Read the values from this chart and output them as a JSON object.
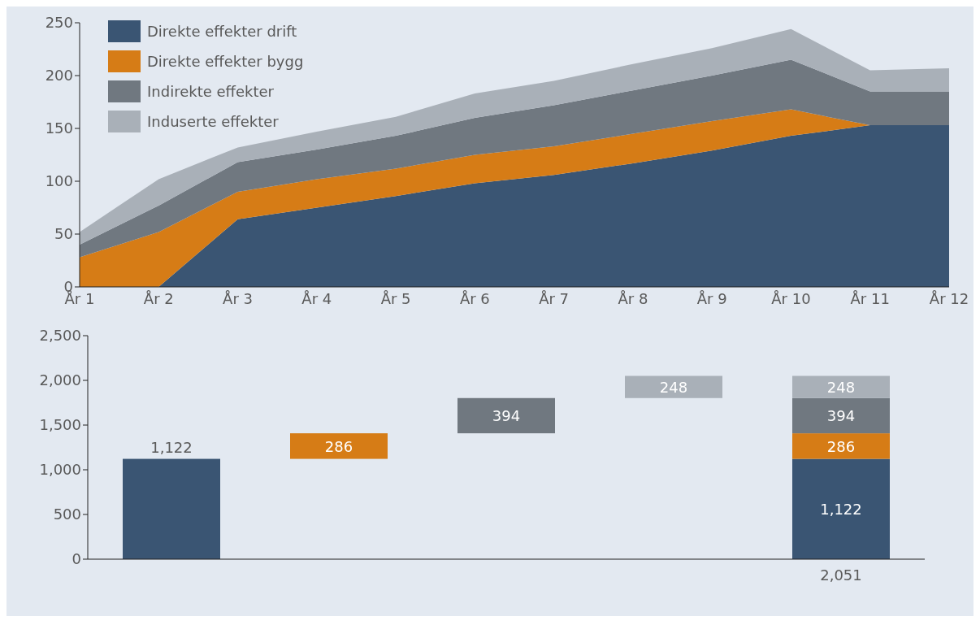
{
  "chart_data": [
    {
      "type": "area",
      "stacked": true,
      "categories": [
        "År 1",
        "År 2",
        "År 3",
        "År 4",
        "År 5",
        "År 6",
        "År 7",
        "År 8",
        "År 9",
        "År 10",
        "År 11",
        "År 12"
      ],
      "series": [
        {
          "name": "Direkte effekter drift",
          "color": "#3a5573",
          "values": [
            0,
            0,
            64,
            75,
            86,
            98,
            106,
            117,
            129,
            143,
            153,
            153
          ]
        },
        {
          "name": "Direkte effekter bygg",
          "color": "#d67c16",
          "values": [
            28,
            52,
            26,
            27,
            26,
            27,
            27,
            28,
            28,
            25,
            0,
            0
          ]
        },
        {
          "name": "Indirekte effekter",
          "color": "#707880",
          "values": [
            12,
            25,
            28,
            28,
            31,
            35,
            39,
            41,
            43,
            47,
            32,
            32
          ]
        },
        {
          "name": "Induserte effekter",
          "color": "#a9b0b8",
          "values": [
            12,
            25,
            14,
            17,
            18,
            23,
            23,
            25,
            26,
            29,
            20,
            22
          ]
        }
      ],
      "ylim": [
        0,
        250
      ],
      "yticks": [
        0,
        50,
        100,
        150,
        200,
        250
      ],
      "grid": false,
      "legend": "top left"
    },
    {
      "type": "bar",
      "categories": [
        null,
        null,
        null,
        null,
        null
      ],
      "series": [
        {
          "color": "#3a5573",
          "values": [
            1122,
            null,
            null,
            null,
            1122
          ],
          "base": [
            0,
            null,
            null,
            null,
            0
          ],
          "value_labels": [
            "1,122",
            null,
            null,
            null,
            "1,122"
          ]
        },
        {
          "color": "#d67c16",
          "values": [
            null,
            286,
            null,
            null,
            286
          ],
          "base": [
            null,
            1122,
            null,
            null,
            1122
          ],
          "value_labels": [
            null,
            "286",
            null,
            null,
            "286"
          ]
        },
        {
          "color": "#707880",
          "values": [
            null,
            null,
            394,
            null,
            394
          ],
          "base": [
            null,
            null,
            1408,
            null,
            1408
          ],
          "value_labels": [
            null,
            null,
            "394",
            null,
            "394"
          ]
        },
        {
          "color": "#a9b0b8",
          "values": [
            null,
            null,
            null,
            248,
            248
          ],
          "base": [
            null,
            null,
            null,
            1802,
            1802
          ],
          "value_labels": [
            null,
            null,
            null,
            "248",
            "248"
          ]
        }
      ],
      "totals": [
        null,
        null,
        null,
        null,
        "2,051"
      ],
      "ylim": [
        0,
        2500
      ],
      "yticks": [
        0,
        500,
        {
          "value": 1000,
          "label": "1,000"
        },
        {
          "value": 1500,
          "label": "1,500"
        },
        {
          "value": 2000,
          "label": "2,000"
        },
        {
          "value": 2500,
          "label": "2,500"
        }
      ],
      "grid": false
    }
  ]
}
